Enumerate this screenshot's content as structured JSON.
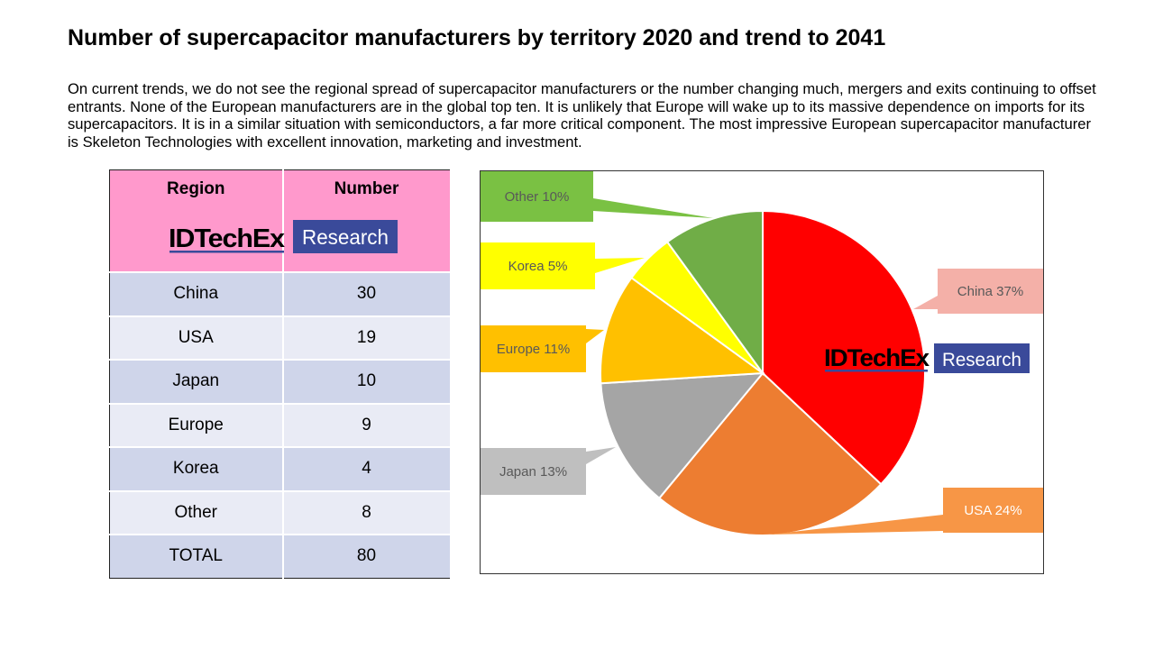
{
  "title": "Number of supercapacitor manufacturers by territory 2020 and trend to 2041",
  "intro": "On current trends, we do not see the regional spread of supercapacitor manufacturers or the number changing much, mergers and exits continuing to offset entrants. None of the European manufacturers are in the global top ten. It is unlikely that Europe will wake up to its massive dependence on imports for its supercapacitors. It is in a similar situation with semiconductors, a far more critical component. The most impressive European supercapacitor manufacturer is Skeleton Technologies with excellent innovation, marketing and investment.",
  "logo": {
    "brand": "IDTechEx",
    "tag": "Research",
    "brand_color": "#000000",
    "underline_color": "#3a4a9a",
    "tag_bg": "#3a4a9a"
  },
  "table": {
    "headers": [
      "Region",
      "Number"
    ],
    "rows": [
      [
        "China",
        "30"
      ],
      [
        "USA",
        "19"
      ],
      [
        "Japan",
        "10"
      ],
      [
        "Europe",
        "9"
      ],
      [
        "Korea",
        "4"
      ],
      [
        "Other",
        "8"
      ],
      [
        "TOTAL",
        "80"
      ]
    ]
  },
  "chart_data": {
    "type": "pie",
    "title": "",
    "slices": [
      {
        "label": "China 37%",
        "name": "China",
        "value": 37,
        "color": "#ff0000",
        "callout_bg": "#f4b0a8",
        "callout_text": "#595959"
      },
      {
        "label": "USA 24%",
        "name": "USA",
        "value": 24,
        "color": "#ed7d31",
        "callout_bg": "#f79646",
        "callout_text": "#ffffff"
      },
      {
        "label": "Japan 13%",
        "name": "Japan",
        "value": 13,
        "color": "#a5a5a5",
        "callout_bg": "#bfbfbf",
        "callout_text": "#595959"
      },
      {
        "label": "Europe 11%",
        "name": "Europe",
        "value": 11,
        "color": "#ffc000",
        "callout_bg": "#ffc000",
        "callout_text": "#595959"
      },
      {
        "label": "Korea 5%",
        "name": "Korea",
        "value": 5,
        "color": "#ffff00",
        "callout_bg": "#ffff00",
        "callout_text": "#595959"
      },
      {
        "label": "Other  10%",
        "name": "Other",
        "value": 10,
        "color": "#70ad47",
        "callout_bg": "#7ac143",
        "callout_text": "#595959"
      }
    ],
    "legend": "callouts"
  }
}
